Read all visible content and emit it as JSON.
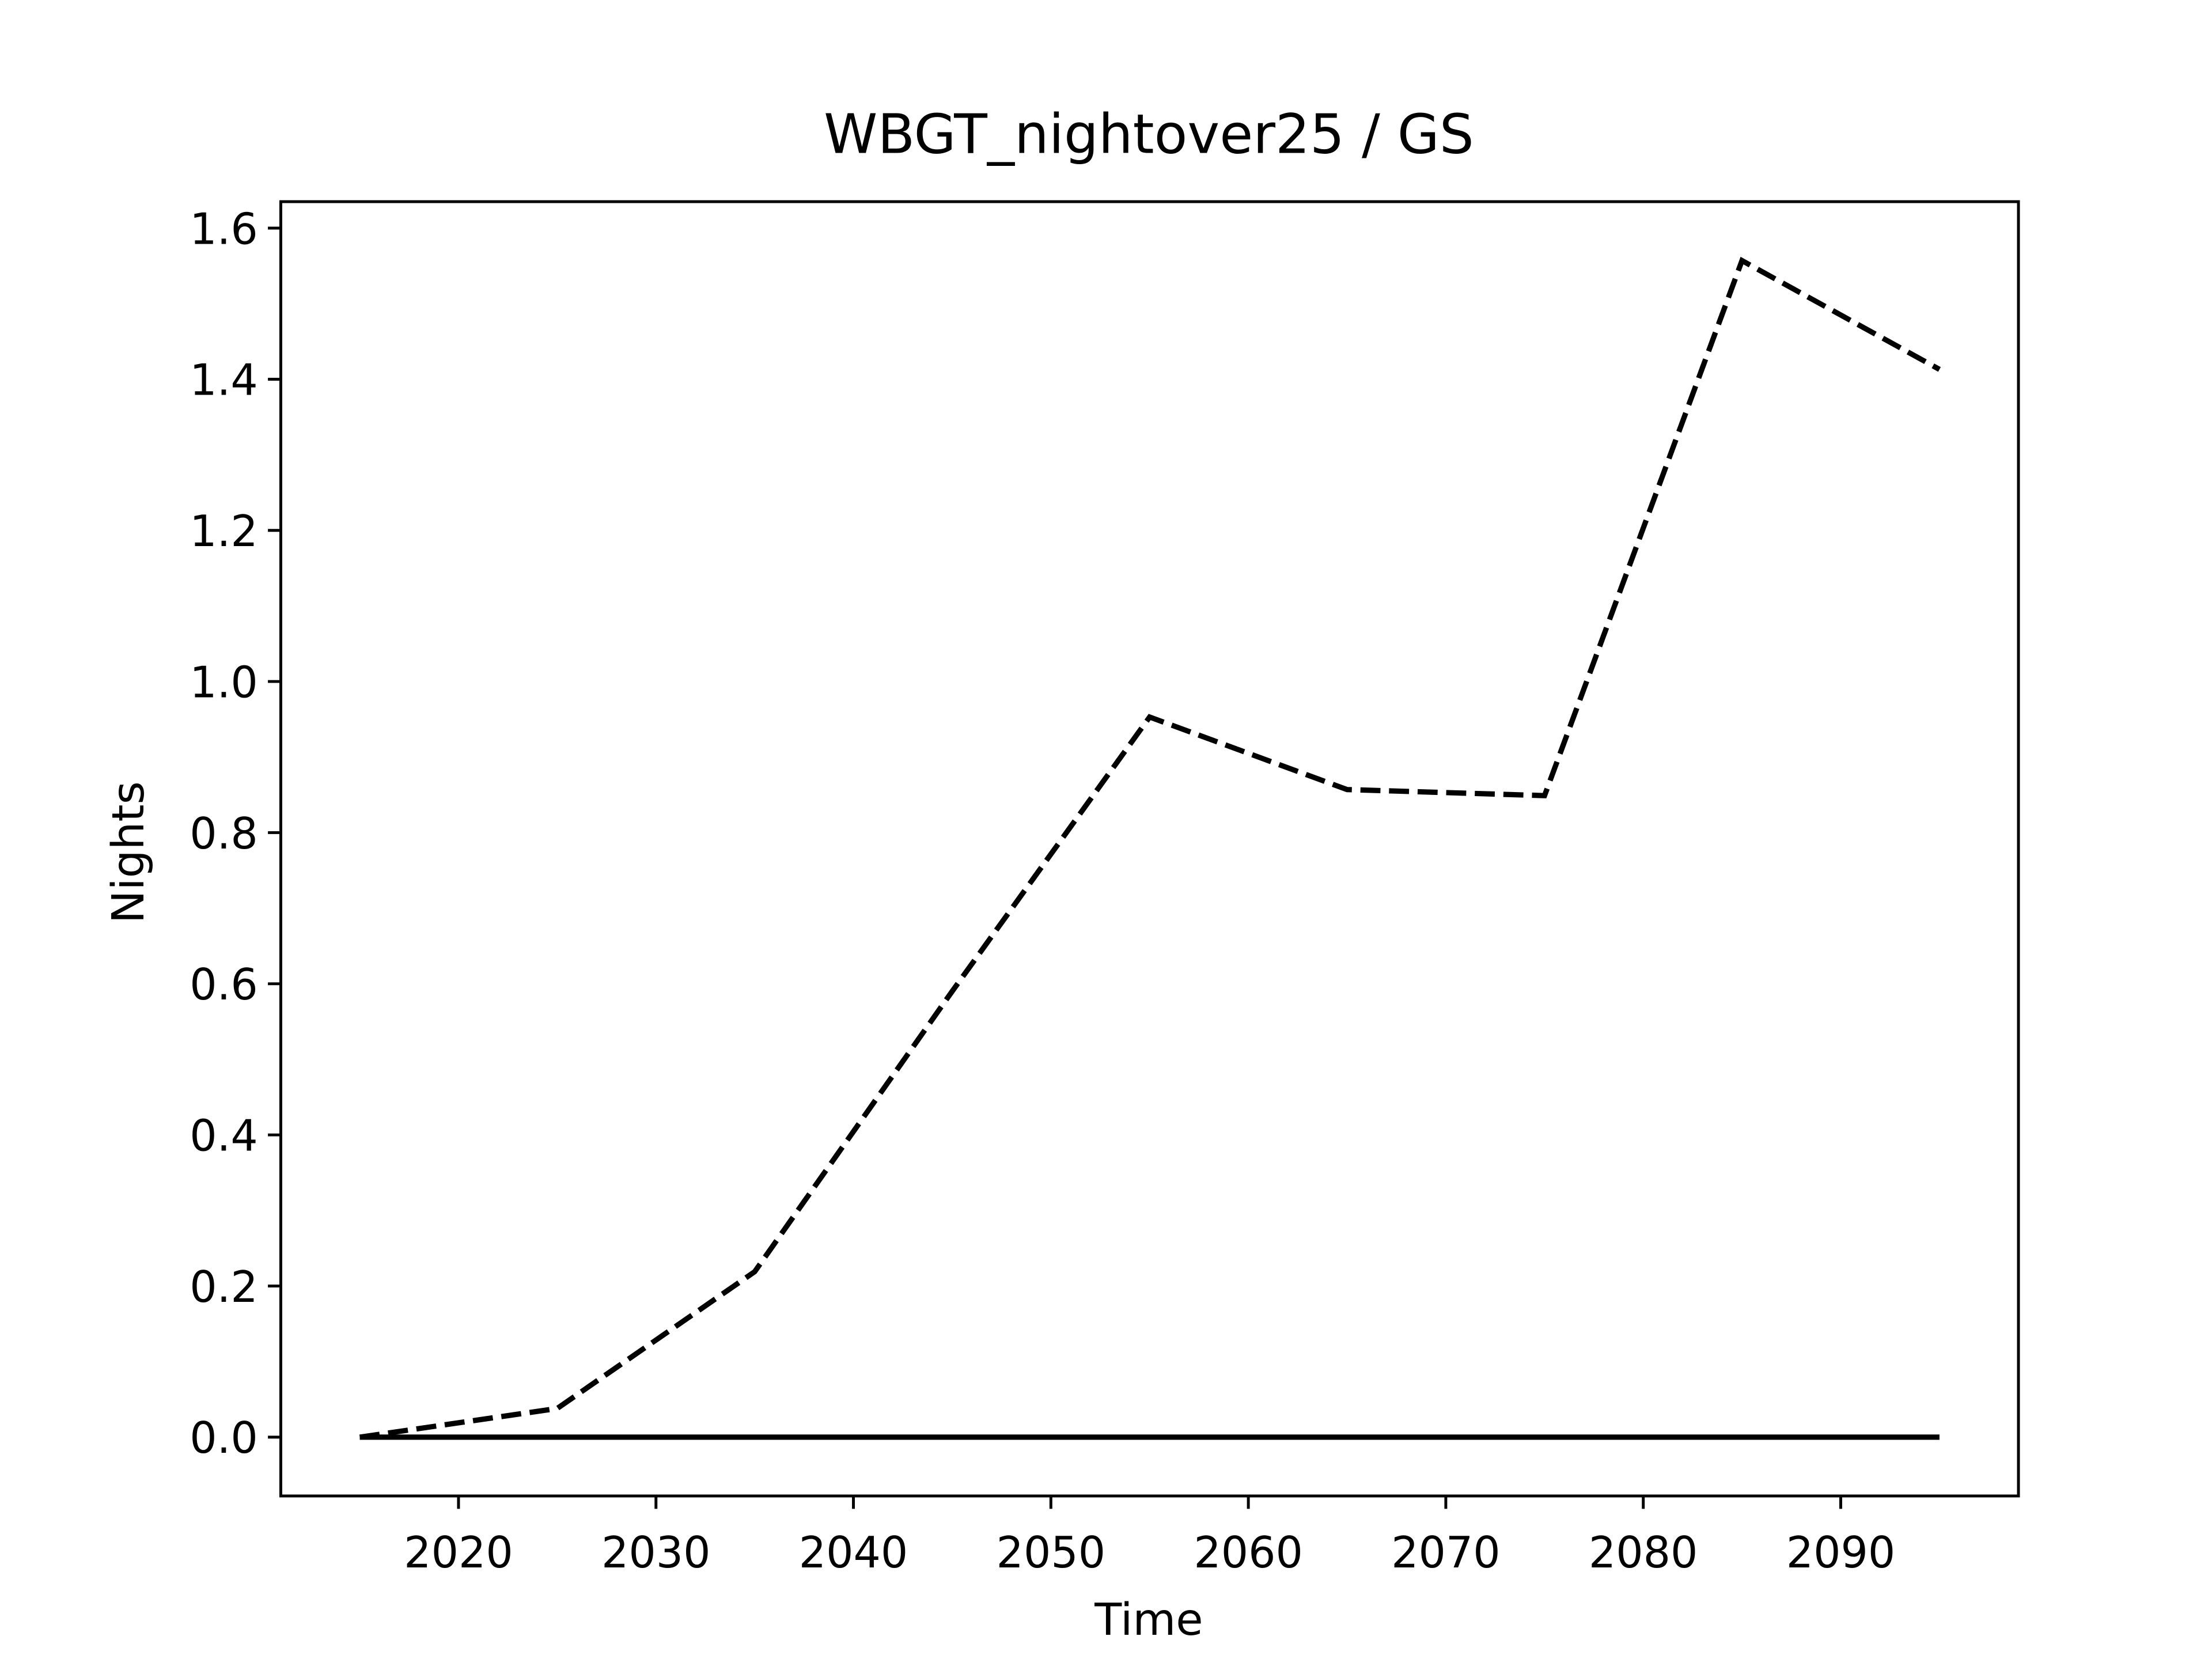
{
  "chart_data": {
    "type": "line",
    "title": "WBGT_nightover25 / GS",
    "xlabel": "Time",
    "ylabel": "Nights",
    "x": [
      2015,
      2025,
      2035,
      2045,
      2055,
      2065,
      2075,
      2085,
      2095
    ],
    "series": [
      {
        "color": "#000000",
        "linestyle": "dashed",
        "values": [
          0,
          0.038,
          0.219,
          0.59,
          0.953,
          0.857,
          0.849,
          1.557,
          1.413
        ]
      },
      {
        "color": "#000000",
        "linestyle": "solid",
        "values": [
          0,
          0,
          0,
          0,
          0,
          0,
          0,
          0,
          0
        ]
      }
    ],
    "xlim": [
      2011,
      2099
    ],
    "xticks": [
      2020,
      2030,
      2040,
      2050,
      2060,
      2070,
      2080,
      2090
    ],
    "ylim": [
      -0.0778,
      1.635
    ],
    "yticks": [
      {
        "value": 0,
        "label": "0.0"
      },
      {
        "value": 0.2,
        "label": "0.2"
      },
      {
        "value": 0.4,
        "label": "0.4"
      },
      {
        "value": 0.6,
        "label": "0.6"
      },
      {
        "value": 0.8,
        "label": "0.8"
      },
      {
        "value": 1,
        "label": "1.0"
      },
      {
        "value": 1.2,
        "label": "1.2"
      },
      {
        "value": 1.4,
        "label": "1.4"
      },
      {
        "value": 1.6,
        "label": "1.6"
      }
    ],
    "grid": false
  }
}
